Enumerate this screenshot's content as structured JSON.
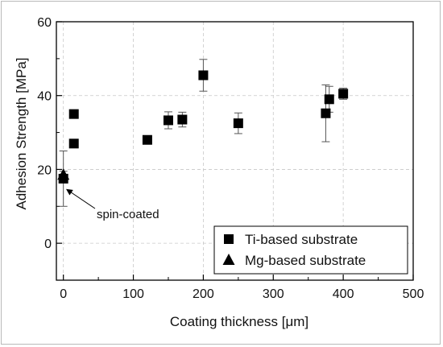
{
  "chart_data": {
    "type": "scatter",
    "title": "",
    "xlabel": "Coating thickness [μm]",
    "ylabel": "Adhesion Strength [MPa]",
    "xlim": [
      -10,
      500
    ],
    "ylim": [
      -10,
      60
    ],
    "xticks": [
      0,
      100,
      200,
      300,
      400,
      500
    ],
    "yticks": [
      0,
      20,
      40,
      60
    ],
    "grid": true,
    "legend_position": "bottom-right",
    "series": [
      {
        "name": "Ti-based substrate",
        "marker": "square",
        "color": "#000000",
        "points": [
          {
            "x": 0,
            "y": 17.5,
            "err": 7.5
          },
          {
            "x": 15,
            "y": 27,
            "err": 0
          },
          {
            "x": 15,
            "y": 35,
            "err": 0
          },
          {
            "x": 120,
            "y": 28,
            "err": 0
          },
          {
            "x": 150,
            "y": 33.3,
            "err": 2.3
          },
          {
            "x": 170,
            "y": 33.5,
            "err": 2.0
          },
          {
            "x": 200,
            "y": 45.5,
            "err": 4.3
          },
          {
            "x": 250,
            "y": 32.5,
            "err": 2.8
          },
          {
            "x": 375,
            "y": 35.2,
            "err": 7.7
          },
          {
            "x": 380,
            "y": 39.0,
            "err": 3.5
          },
          {
            "x": 400,
            "y": 40.5,
            "err": 1.5
          }
        ]
      },
      {
        "name": "Mg-based substrate",
        "marker": "triangle",
        "color": "#000000",
        "points": [
          {
            "x": 0,
            "y": 18.5,
            "err": 1.0
          }
        ]
      }
    ],
    "annotations": [
      {
        "text": "spin-coated",
        "x": 0,
        "y": 17.5
      }
    ]
  }
}
